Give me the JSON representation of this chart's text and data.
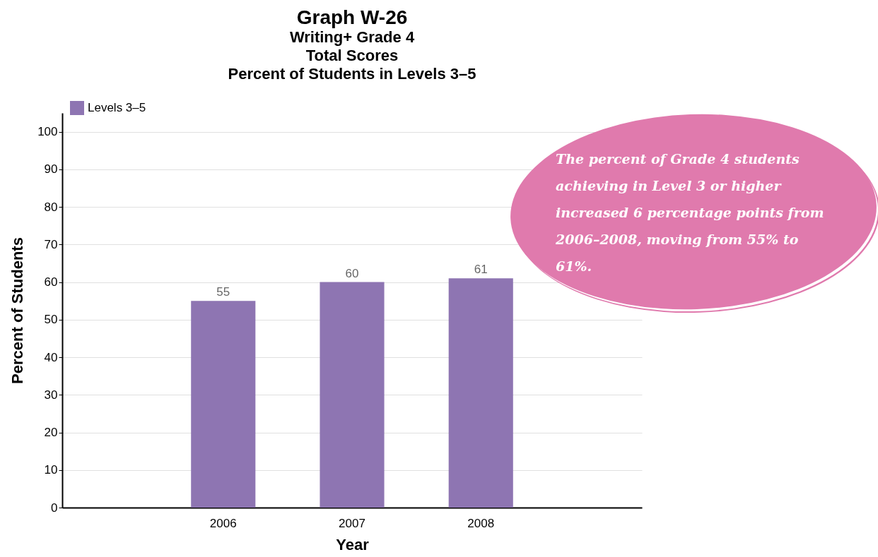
{
  "chart_data": {
    "type": "bar",
    "title": "Graph W-26",
    "subtitle": "Writing+ Grade 4\nTotal Scores\nPercent of Students in Levels 3–5",
    "xlabel": "Year",
    "ylabel": "Percent of Students",
    "categories": [
      "2006",
      "2007",
      "2008"
    ],
    "series": [
      {
        "name": "Levels 3–5",
        "color": "#8e75b2",
        "values": [
          55,
          60,
          61
        ]
      }
    ],
    "ylim": [
      0,
      105
    ],
    "yticks": [
      0,
      10,
      20,
      30,
      40,
      50,
      60,
      70,
      80,
      90,
      100
    ],
    "grid": "y",
    "legend": "top left",
    "data_labels": true,
    "annotations": [
      "The percent of Grade 4 students achieving in Level 3 or higher increased 6 percentage points from 2006–2008, moving from 55% to 61%."
    ]
  }
}
